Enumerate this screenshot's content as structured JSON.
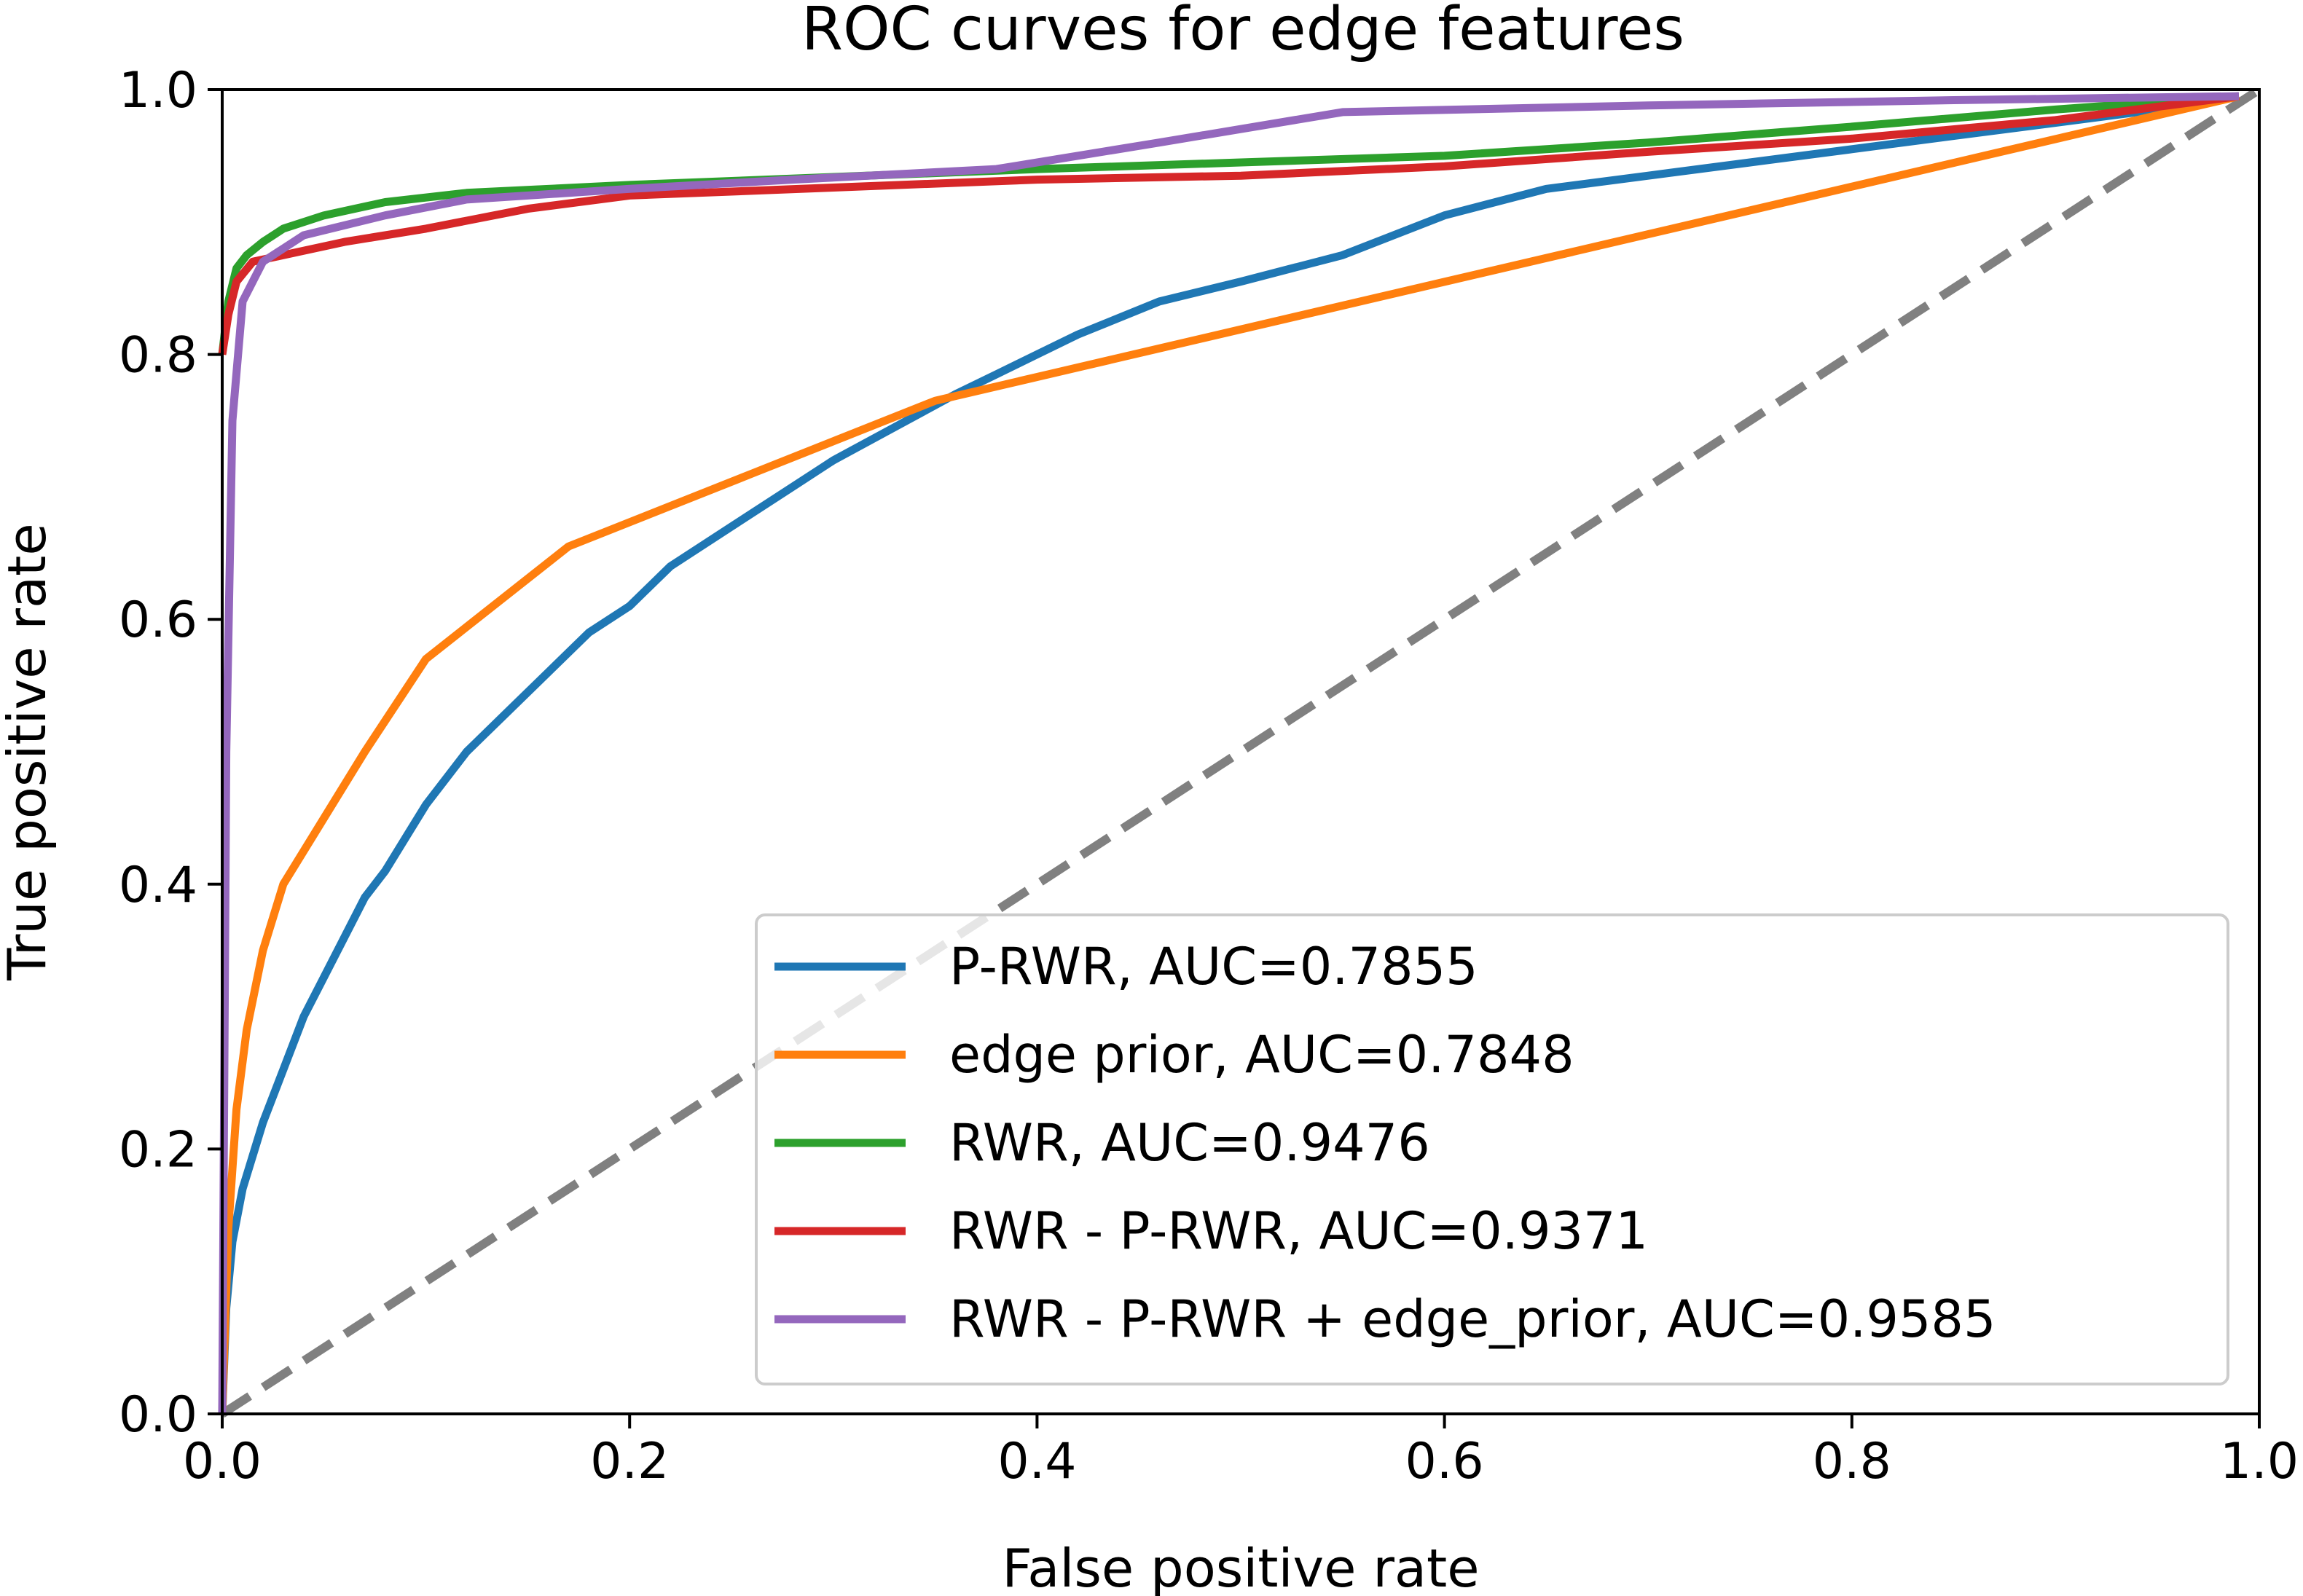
{
  "chart_data": {
    "type": "line",
    "title": "ROC curves for edge features",
    "xlabel": "False positive rate",
    "ylabel": "True positive rate",
    "xlim": [
      0.0,
      1.0
    ],
    "ylim": [
      0.0,
      1.0
    ],
    "xticks": [
      "0.0",
      "0.2",
      "0.4",
      "0.6",
      "0.8",
      "1.0"
    ],
    "yticks": [
      "0.0",
      "0.2",
      "0.4",
      "0.6",
      "0.8",
      "1.0"
    ],
    "grid": false,
    "legend_position": "lower-right",
    "series": [
      {
        "name": "P-RWR, AUC=0.7855",
        "color": "#1f77b4",
        "points": [
          [
            0,
            0
          ],
          [
            0.002,
            0.08
          ],
          [
            0.005,
            0.13
          ],
          [
            0.01,
            0.17
          ],
          [
            0.02,
            0.22
          ],
          [
            0.03,
            0.26
          ],
          [
            0.04,
            0.3
          ],
          [
            0.05,
            0.33
          ],
          [
            0.06,
            0.36
          ],
          [
            0.07,
            0.39
          ],
          [
            0.08,
            0.41
          ],
          [
            0.1,
            0.46
          ],
          [
            0.12,
            0.5
          ],
          [
            0.14,
            0.53
          ],
          [
            0.16,
            0.56
          ],
          [
            0.18,
            0.59
          ],
          [
            0.2,
            0.61
          ],
          [
            0.22,
            0.64
          ],
          [
            0.25,
            0.67
          ],
          [
            0.28,
            0.7
          ],
          [
            0.3,
            0.72
          ],
          [
            0.33,
            0.745
          ],
          [
            0.36,
            0.77
          ],
          [
            0.38,
            0.785
          ],
          [
            0.4,
            0.8
          ],
          [
            0.42,
            0.815
          ],
          [
            0.46,
            0.84
          ],
          [
            0.5,
            0.855
          ],
          [
            0.55,
            0.875
          ],
          [
            0.6,
            0.905
          ],
          [
            0.65,
            0.925
          ],
          [
            0.7,
            0.935
          ],
          [
            0.75,
            0.945
          ],
          [
            0.8,
            0.955
          ],
          [
            0.85,
            0.965
          ],
          [
            0.9,
            0.975
          ],
          [
            0.95,
            0.985
          ],
          [
            0.99,
            0.995
          ]
        ]
      },
      {
        "name": "edge prior, AUC=0.7848",
        "color": "#ff7f0e",
        "points": [
          [
            0,
            0
          ],
          [
            0.003,
            0.14
          ],
          [
            0.007,
            0.23
          ],
          [
            0.012,
            0.29
          ],
          [
            0.02,
            0.35
          ],
          [
            0.03,
            0.4
          ],
          [
            0.05,
            0.45
          ],
          [
            0.07,
            0.5
          ],
          [
            0.1,
            0.57
          ],
          [
            0.17,
            0.655
          ],
          [
            0.26,
            0.71
          ],
          [
            0.35,
            0.765
          ],
          [
            0.99,
            0.995
          ]
        ]
      },
      {
        "name": "RWR, AUC=0.9476",
        "color": "#2ca02c",
        "points": [
          [
            0,
            0.8
          ],
          [
            0.003,
            0.84
          ],
          [
            0.007,
            0.865
          ],
          [
            0.012,
            0.875
          ],
          [
            0.02,
            0.885
          ],
          [
            0.03,
            0.895
          ],
          [
            0.05,
            0.905
          ],
          [
            0.08,
            0.915
          ],
          [
            0.12,
            0.922
          ],
          [
            0.2,
            0.928
          ],
          [
            0.3,
            0.934
          ],
          [
            0.4,
            0.94
          ],
          [
            0.5,
            0.945
          ],
          [
            0.6,
            0.95
          ],
          [
            0.7,
            0.96
          ],
          [
            0.8,
            0.972
          ],
          [
            0.9,
            0.985
          ],
          [
            0.99,
            0.995
          ]
        ]
      },
      {
        "name": "RWR - P-RWR, AUC=0.9371",
        "color": "#d62728",
        "points": [
          [
            0,
            0.8
          ],
          [
            0.003,
            0.83
          ],
          [
            0.007,
            0.855
          ],
          [
            0.015,
            0.87
          ],
          [
            0.03,
            0.875
          ],
          [
            0.06,
            0.885
          ],
          [
            0.1,
            0.895
          ],
          [
            0.15,
            0.91
          ],
          [
            0.2,
            0.92
          ],
          [
            0.3,
            0.926
          ],
          [
            0.4,
            0.932
          ],
          [
            0.5,
            0.935
          ],
          [
            0.6,
            0.942
          ],
          [
            0.7,
            0.953
          ],
          [
            0.8,
            0.963
          ],
          [
            0.9,
            0.977
          ],
          [
            0.99,
            0.995
          ]
        ]
      },
      {
        "name": "RWR - P-RWR + edge_prior, AUC=0.9585",
        "color": "#9467bd",
        "points": [
          [
            0,
            0
          ],
          [
            0.002,
            0.5
          ],
          [
            0.005,
            0.75
          ],
          [
            0.01,
            0.84
          ],
          [
            0.015,
            0.855
          ],
          [
            0.02,
            0.87
          ],
          [
            0.04,
            0.89
          ],
          [
            0.08,
            0.905
          ],
          [
            0.12,
            0.917
          ],
          [
            0.2,
            0.925
          ],
          [
            0.28,
            0.932
          ],
          [
            0.38,
            0.94
          ],
          [
            0.46,
            0.96
          ],
          [
            0.55,
            0.983
          ],
          [
            0.7,
            0.988
          ],
          [
            0.85,
            0.992
          ],
          [
            0.99,
            0.995
          ]
        ]
      },
      {
        "name": "",
        "color": "#808080",
        "dashed": true,
        "points": [
          [
            0,
            0
          ],
          [
            1,
            1
          ]
        ]
      }
    ]
  }
}
